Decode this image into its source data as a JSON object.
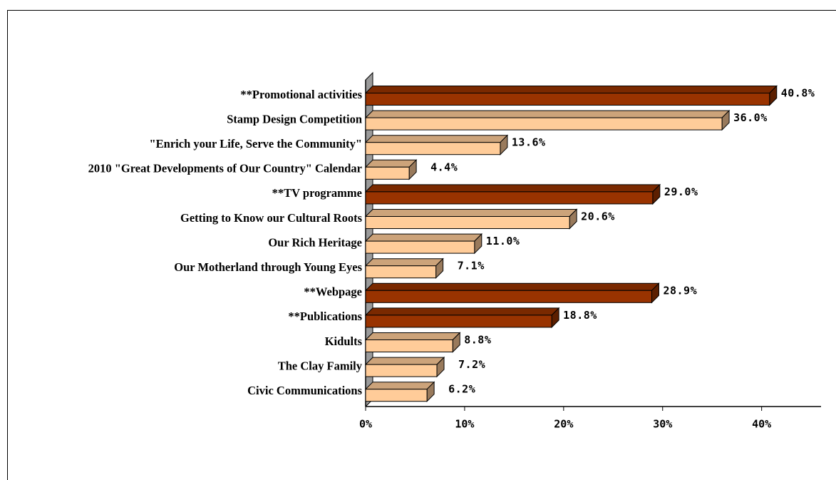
{
  "chart_data": {
    "type": "bar",
    "orientation": "horizontal",
    "categories": [
      "**Promotional activities",
      "Stamp Design Competition",
      "\"Enrich your Life, Serve the Community\"",
      "2010 \"Great Developments of Our Country\" Calendar",
      "**TV programme",
      "Getting to Know our Cultural Roots",
      "Our Rich Heritage",
      "Our Motherland through Young Eyes",
      "**Webpage",
      "**Publications",
      "Kidults",
      "The Clay Family",
      "Civic Communications"
    ],
    "values": [
      40.8,
      36.0,
      13.6,
      4.4,
      29.0,
      20.6,
      11.0,
      7.1,
      28.9,
      18.8,
      8.8,
      7.2,
      6.2
    ],
    "value_labels": [
      "40.8%",
      "36.0%",
      "13.6%",
      "4.4%",
      "29.0%",
      "20.6%",
      "11.0%",
      "7.1%",
      "28.9%",
      "18.8%",
      "8.8%",
      "7.2%",
      "6.2%"
    ],
    "colors": [
      "#993300",
      "#ffcc99",
      "#ffcc99",
      "#ffcc99",
      "#993300",
      "#ffcc99",
      "#ffcc99",
      "#ffcc99",
      "#993300",
      "#993300",
      "#ffcc99",
      "#ffcc99",
      "#ffcc99"
    ],
    "xlim": [
      0,
      46
    ],
    "xticks": [
      {
        "value": 0,
        "label": "0%"
      },
      {
        "value": 10,
        "label": "10%"
      },
      {
        "value": 20,
        "label": "20%"
      },
      {
        "value": 30,
        "label": "30%"
      },
      {
        "value": 40,
        "label": "40%"
      }
    ],
    "grid": false
  }
}
